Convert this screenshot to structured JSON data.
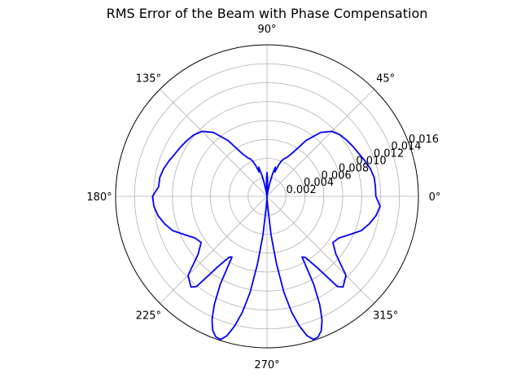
{
  "chart_data": {
    "type": "line",
    "projection": "polar",
    "title": "RMS Error of the Beam with Phase Compensation",
    "theta_tick_labels": [
      "0°",
      "45°",
      "90°",
      "135°",
      "180°",
      "225°",
      "270°",
      "315°"
    ],
    "theta_ticks_deg": [
      0,
      45,
      90,
      135,
      180,
      225,
      270,
      315
    ],
    "r_tick_labels": [
      "0.002",
      "0.004",
      "0.006",
      "0.008",
      "0.010",
      "0.012",
      "0.014",
      "0.016"
    ],
    "r_ticks": [
      0.002,
      0.004,
      0.006,
      0.008,
      0.01,
      0.012,
      0.014,
      0.016
    ],
    "rlim": [
      0,
      0.016
    ],
    "r_label_angle_deg": 22.5,
    "grid": true,
    "series": [
      {
        "color": "#0000ff",
        "theta_deg": [
          0,
          5,
          10,
          15,
          20,
          25,
          30,
          35,
          40,
          45,
          50,
          55,
          60,
          63,
          66,
          68,
          70,
          72,
          74,
          76,
          78,
          80,
          83,
          86,
          88,
          90,
          92,
          94,
          97,
          100,
          102,
          104,
          106,
          108,
          110,
          112,
          114,
          117,
          120,
          125,
          130,
          135,
          140,
          145,
          150,
          155,
          160,
          165,
          170,
          175,
          180,
          185,
          190,
          195,
          200,
          205,
          210,
          215,
          220,
          225,
          230,
          232,
          235,
          238,
          240,
          242,
          244,
          246,
          248,
          250,
          252,
          254,
          256,
          258,
          260,
          262,
          264,
          266,
          268,
          270,
          272,
          274,
          276,
          278,
          280,
          282,
          284,
          286,
          288,
          290,
          292,
          294,
          296,
          298,
          300,
          302,
          305,
          308,
          310,
          315,
          320,
          325,
          330,
          335,
          340,
          345,
          350,
          355,
          360
        ],
        "r": [
          0.0115,
          0.0115,
          0.0115,
          0.0113,
          0.011,
          0.0107,
          0.0105,
          0.0103,
          0.0101,
          0.0097,
          0.0088,
          0.0072,
          0.0052,
          0.0046,
          0.0043,
          0.004,
          0.0034,
          0.0027,
          0.0032,
          0.0025,
          0.0015,
          0.0006,
          0.0,
          0.0006,
          0.0017,
          0.0025,
          0.0017,
          0.0006,
          0.0,
          0.0006,
          0.0015,
          0.0025,
          0.0032,
          0.0027,
          0.0034,
          0.004,
          0.0043,
          0.0046,
          0.0052,
          0.0072,
          0.0088,
          0.0097,
          0.0101,
          0.0103,
          0.0105,
          0.0107,
          0.011,
          0.0113,
          0.0115,
          0.0115,
          0.0121,
          0.012,
          0.0117,
          0.0112,
          0.0106,
          0.0096,
          0.0088,
          0.0085,
          0.0095,
          0.0118,
          0.0125,
          0.0121,
          0.0091,
          0.0076,
          0.0074,
          0.0105,
          0.0127,
          0.0143,
          0.0153,
          0.0158,
          0.0159,
          0.0153,
          0.0141,
          0.0125,
          0.0103,
          0.0072,
          0.0041,
          0.001,
          0.0003,
          0.0,
          0.0003,
          0.001,
          0.0041,
          0.0072,
          0.0103,
          0.0125,
          0.0141,
          0.0153,
          0.0159,
          0.0158,
          0.0153,
          0.0143,
          0.0127,
          0.0105,
          0.0074,
          0.0076,
          0.0091,
          0.0121,
          0.0125,
          0.0118,
          0.0095,
          0.0085,
          0.0088,
          0.0096,
          0.0106,
          0.0112,
          0.0117,
          0.012,
          0.0115
        ]
      }
    ]
  }
}
